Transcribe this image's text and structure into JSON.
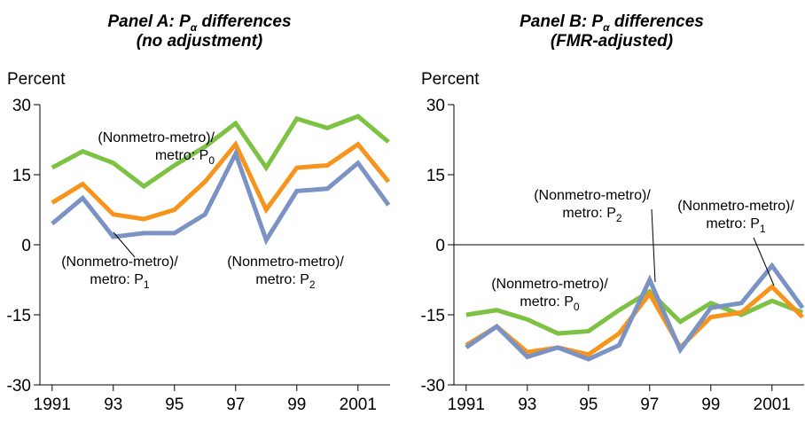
{
  "chart_data": [
    {
      "type": "line",
      "title": {
        "text": "Panel A: P",
        "sub": "α",
        "text2": " differences",
        "line2": "(no adjustment)"
      },
      "y_label": "Percent",
      "x": [
        1991,
        1992,
        1993,
        1994,
        1995,
        1996,
        1997,
        1998,
        1999,
        2000,
        2001,
        2002
      ],
      "xlim": [
        1990.6,
        2002.05
      ],
      "xticks": [
        1991,
        {
          "value": 1993,
          "label": "93"
        },
        {
          "value": 1995,
          "label": "95"
        },
        {
          "value": 1997,
          "label": "97"
        },
        {
          "value": 1999,
          "label": "99"
        },
        2001
      ],
      "ylim": [
        -30,
        30
      ],
      "yticks": [
        -30,
        -15,
        0,
        15,
        30
      ],
      "zero_line": false,
      "series": [
        {
          "color": "#7dc242",
          "values": [
            16.5,
            20,
            17.5,
            12.5,
            17,
            21,
            26,
            16.5,
            27,
            25,
            27.5,
            22
          ]
        },
        {
          "color": "#f7941d",
          "values": [
            9,
            13,
            6.5,
            5.5,
            7.5,
            13.5,
            21.5,
            7.5,
            16.5,
            17,
            21.5,
            13.5
          ]
        },
        {
          "color": "#7b93c4",
          "values": [
            4.5,
            10,
            1.7,
            2.5,
            2.5,
            6.5,
            19.5,
            1,
            11.5,
            12,
            17.5,
            8.5
          ]
        }
      ],
      "annotations": [
        {
          "text": "(Nonmetro-metro)/",
          "text2": "metro: P",
          "sub": "0"
        },
        {
          "text": "(Nonmetro-metro)/",
          "text2": "metro: P",
          "sub": "1"
        },
        {
          "text": "(Nonmetro-metro)/",
          "text2": "metro: P",
          "sub": "2"
        }
      ]
    },
    {
      "type": "line",
      "title": {
        "text": "Panel B: P",
        "sub": "α",
        "text2": " differences",
        "line2": "(FMR-adjusted)"
      },
      "y_label": "Percent",
      "x": [
        1991,
        1992,
        1993,
        1994,
        1995,
        1996,
        1997,
        1998,
        1999,
        2000,
        2001,
        2002
      ],
      "xlim": [
        1990.6,
        2002.05
      ],
      "xticks": [
        1991,
        {
          "value": 1993,
          "label": "93"
        },
        {
          "value": 1995,
          "label": "95"
        },
        {
          "value": 1997,
          "label": "97"
        },
        {
          "value": 1999,
          "label": "99"
        },
        2001
      ],
      "ylim": [
        -30,
        30
      ],
      "yticks": [
        -30,
        -15,
        0,
        15,
        30
      ],
      "zero_line": true,
      "series": [
        {
          "color": "#7dc242",
          "values": [
            -15,
            -14,
            -16,
            -19,
            -18.5,
            -14,
            -10,
            -16.5,
            -12.5,
            -15,
            -12,
            -14.5
          ]
        },
        {
          "color": "#f7941d",
          "values": [
            -21.5,
            -17.5,
            -23,
            -22,
            -23.5,
            -19,
            -10.5,
            -22,
            -15.5,
            -14.5,
            -9,
            -15.5
          ]
        },
        {
          "color": "#7b93c4",
          "values": [
            -22,
            -17.5,
            -24,
            -22,
            -24.5,
            -21.5,
            -7.5,
            -22.5,
            -13.5,
            -12.5,
            -4.5,
            -13.5
          ]
        }
      ],
      "annotations": [
        {
          "text": "(Nonmetro-metro)/",
          "text2": "metro: P",
          "sub": "0"
        },
        {
          "text": "(Nonmetro-metro)/",
          "text2": "metro: P",
          "sub": "2"
        },
        {
          "text": "(Nonmetro-metro)/",
          "text2": "metro: P",
          "sub": "1"
        }
      ]
    }
  ]
}
